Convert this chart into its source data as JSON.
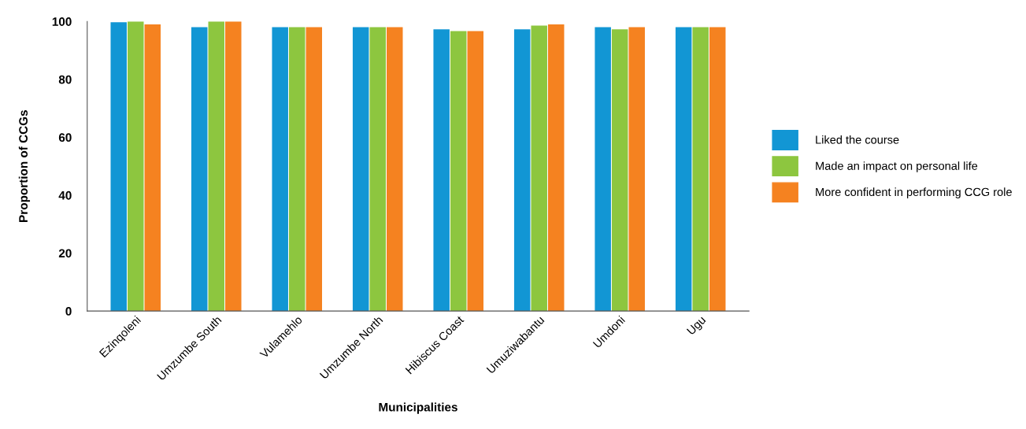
{
  "chart_data": {
    "type": "bar",
    "xlabel": "Municipalities",
    "ylabel": "Proportion of CCGs",
    "categories": [
      "Ezinqoleni",
      "Umzumbe South",
      "Vulamehlo",
      "Umzumbe North",
      "Hibiscus Coast",
      "Umuziwabantu",
      "Umdoni",
      "Ugu"
    ],
    "series": [
      {
        "name": "Liked the course",
        "color": "#1296d4",
        "values": [
          99.7,
          98,
          98,
          98,
          97.3,
          97.3,
          98,
          98
        ]
      },
      {
        "name": "Made an impact on personal life",
        "color": "#8dc63f",
        "values": [
          100,
          100,
          98,
          98,
          96.7,
          98.6,
          97.3,
          98
        ]
      },
      {
        "name": "More confident in performing CCG role",
        "color": "#f58220",
        "values": [
          99,
          100,
          98,
          98,
          96.7,
          99,
          98,
          98
        ]
      }
    ],
    "ylim": [
      0,
      100
    ],
    "yticks": [
      0,
      20,
      40,
      60,
      80,
      100
    ],
    "grid": false,
    "legend": "right"
  }
}
